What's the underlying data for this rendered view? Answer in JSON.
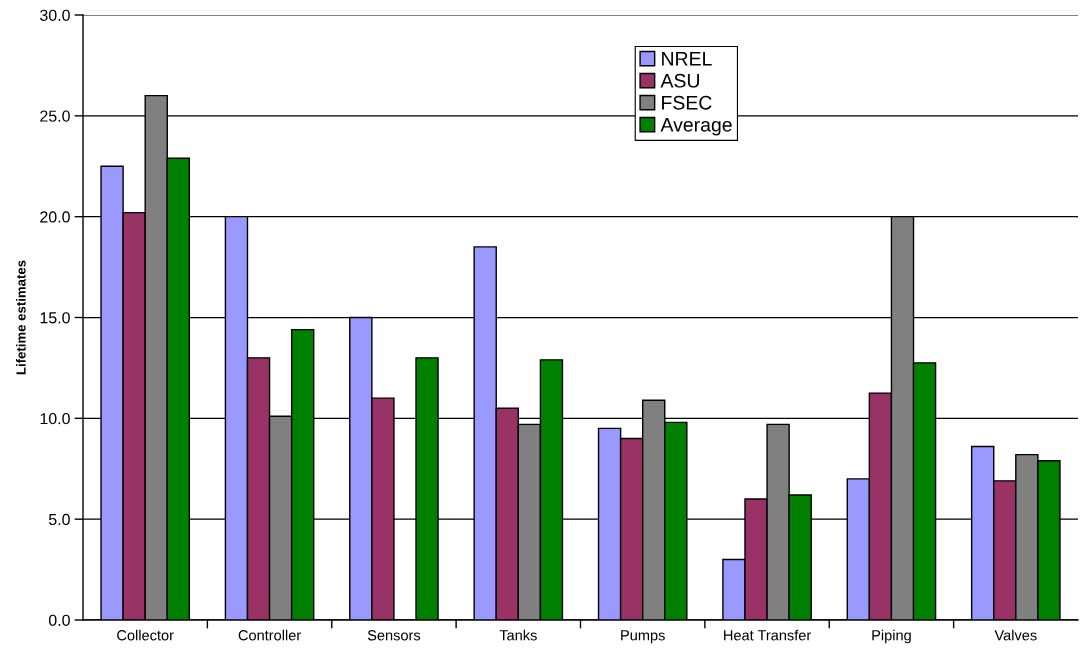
{
  "chart_data": {
    "type": "bar",
    "ylabel": "Lifetime estimates",
    "categories": [
      "Collector",
      "Controller",
      "Sensors",
      "Tanks",
      "Pumps",
      "Heat Transfer",
      "Piping",
      "Valves"
    ],
    "series": [
      {
        "name": "NREL",
        "color": "#9999ff",
        "values": [
          22.5,
          20.0,
          15.0,
          18.5,
          9.5,
          3.0,
          7.0,
          8.6
        ]
      },
      {
        "name": "ASU",
        "color": "#993366",
        "values": [
          20.2,
          13.0,
          11.0,
          10.5,
          9.0,
          6.0,
          11.25,
          6.9
        ]
      },
      {
        "name": "FSEC",
        "color": "#808080",
        "values": [
          26.0,
          10.1,
          null,
          9.7,
          10.9,
          9.7,
          20.0,
          8.2
        ]
      },
      {
        "name": "Average",
        "color": "#008000",
        "values": [
          22.9,
          14.4,
          13.0,
          12.9,
          9.8,
          6.2,
          12.75,
          7.9
        ]
      }
    ],
    "ylim": [
      0,
      30
    ],
    "yticks": [
      {
        "value": 0,
        "label": "0.0"
      },
      {
        "value": 5,
        "label": "5.0"
      },
      {
        "value": 10,
        "label": "10.0"
      },
      {
        "value": 15,
        "label": "15.0"
      },
      {
        "value": 20,
        "label": "20.0"
      },
      {
        "value": 25,
        "label": "25.0"
      },
      {
        "value": 30,
        "label": "30.0"
      }
    ],
    "grid": "y",
    "legend": "top"
  }
}
